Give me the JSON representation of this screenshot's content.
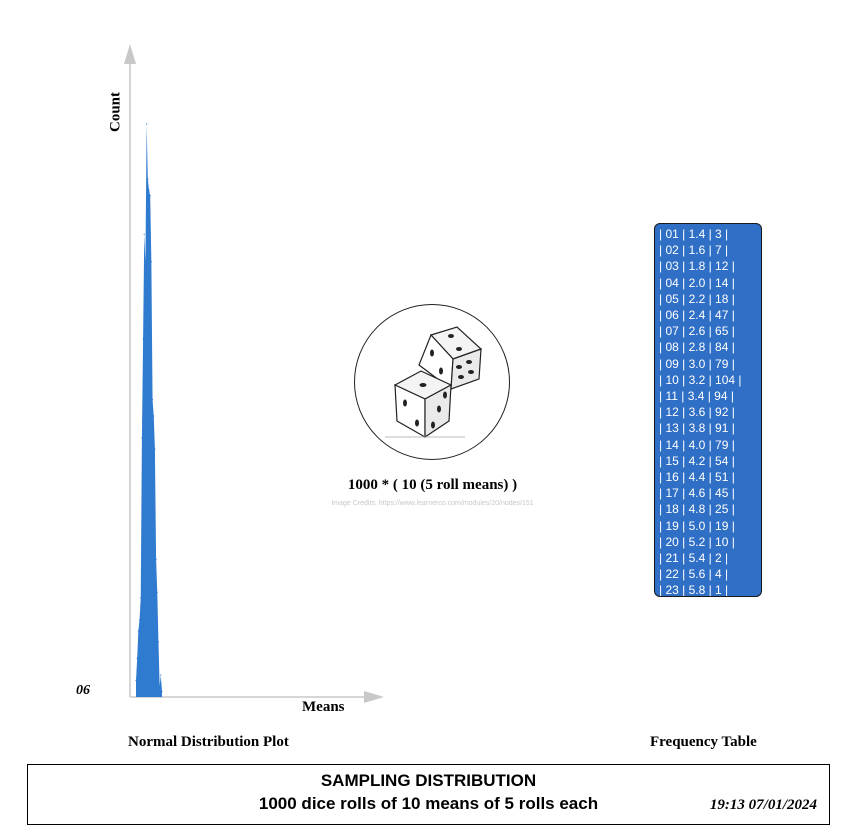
{
  "chart_data": {
    "type": "area",
    "title": "Normal Distribution Plot",
    "xlabel": "Means",
    "ylabel": "Count",
    "origin_label": "06",
    "x": [
      1.4,
      1.6,
      1.8,
      2.0,
      2.2,
      2.4,
      2.6,
      2.8,
      3.0,
      3.2,
      3.4,
      3.6,
      3.8,
      4.0,
      4.2,
      4.4,
      4.6,
      4.8,
      5.0,
      5.2,
      5.4,
      5.6,
      5.8
    ],
    "values": [
      3,
      7,
      12,
      14,
      18,
      47,
      65,
      84,
      79,
      104,
      94,
      92,
      91,
      79,
      54,
      51,
      45,
      25,
      19,
      10,
      2,
      4,
      1
    ],
    "color": "#2f7bd0",
    "grid": false
  },
  "dice_panel": {
    "caption": "1000 * ( 10 (5 roll means) )",
    "credits": "Image Credits: https://www.learnerco.com/modules/20/nodes/151"
  },
  "frequency_table": {
    "caption": "Frequency Table",
    "rows": [
      "| 01 | 1.4 | 3 |",
      "| 02 | 1.6 | 7 |",
      "| 03 | 1.8 | 12 |",
      "| 04 | 2.0 | 14 |",
      "| 05 | 2.2 | 18 |",
      "| 06 | 2.4 | 47 |",
      "| 07 | 2.6 | 65 |",
      "| 08 | 2.8 | 84 |",
      "| 09 | 3.0 | 79 |",
      "| 10 | 3.2 | 104 |",
      "| 11 | 3.4 | 94 |",
      "| 12 | 3.6 | 92 |",
      "| 13 | 3.8 | 91 |",
      "| 14 | 4.0 | 79 |",
      "| 15 | 4.2 | 54 |",
      "| 16 | 4.4 | 51 |",
      "| 17 | 4.6 | 45 |",
      "| 18 | 4.8 | 25 |",
      "| 19 | 5.0 | 19 |",
      "| 20 | 5.2 | 10 |",
      "| 21 | 5.4 | 2 |",
      "| 22 | 5.6 | 4 |",
      "| 23 | 5.8 | 1 |"
    ],
    "background": "#2f6fc6",
    "text_color": "#ffffff"
  },
  "footer": {
    "title": "SAMPLING DISTRIBUTION",
    "subtitle": "1000 dice rolls of 10 means of 5 rolls each",
    "timestamp": "19:13 07/01/2024"
  }
}
